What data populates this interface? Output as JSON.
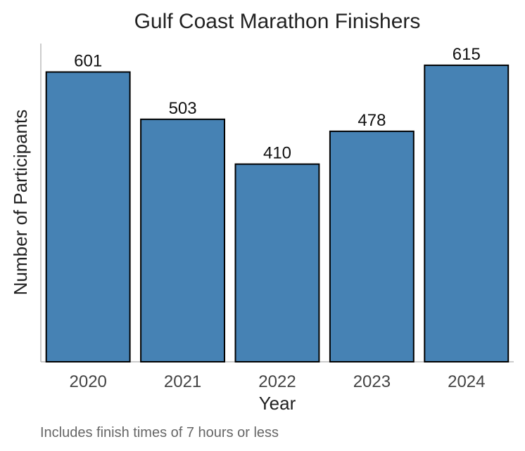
{
  "chart_data": {
    "type": "bar",
    "title": "Gulf Coast Marathon Finishers",
    "xlabel": "Year",
    "ylabel": "Number of Participants",
    "categories": [
      "2020",
      "2021",
      "2022",
      "2023",
      "2024"
    ],
    "values": [
      601,
      503,
      410,
      478,
      615
    ],
    "data_labels": [
      "601",
      "503",
      "410",
      "478",
      "615"
    ],
    "ylim": [
      0,
      660
    ],
    "grid": false,
    "caption": "Includes finish times of 7 hours or less",
    "colors": {
      "bar": "#4682B4",
      "bar_outline": "#000000"
    }
  }
}
